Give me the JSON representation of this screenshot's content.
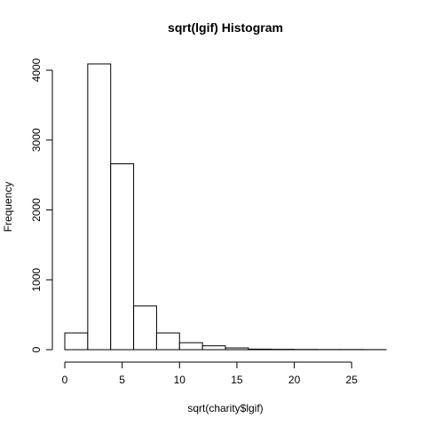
{
  "chart_data": {
    "type": "bar",
    "title": "sqrt(lgif) Histogram",
    "xlabel": "sqrt(charity$lgif)",
    "ylabel": "Frequency",
    "bin_edges": [
      0,
      2,
      4,
      6,
      8,
      10,
      12,
      14,
      16,
      18,
      20,
      22,
      24,
      26,
      28
    ],
    "values": [
      240,
      4090,
      2660,
      625,
      240,
      100,
      55,
      25,
      8,
      5,
      3,
      2,
      2,
      1
    ],
    "xlim": [
      0,
      28
    ],
    "ylim": [
      0,
      4090
    ],
    "x_ticks": [
      0,
      5,
      10,
      15,
      20,
      25
    ],
    "y_ticks": [
      0,
      1000,
      2000,
      3000,
      4000
    ],
    "grid": false,
    "colors": {
      "bar_fill": "#ffffff",
      "bar_stroke": "#000000"
    }
  }
}
